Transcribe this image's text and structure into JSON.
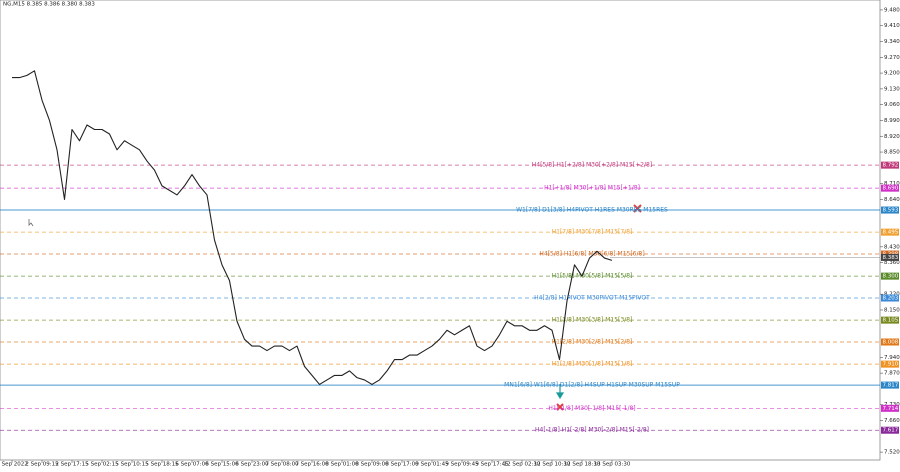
{
  "chart_data": {
    "type": "line",
    "title": "NG,M15  8.385 8.386 8.380 8.383",
    "color": "#222222",
    "categories": [
      "2 Sep 2022",
      null,
      null,
      null,
      "2 Sep 09:15",
      null,
      null,
      null,
      "2 Sep 17:15",
      null,
      null,
      null,
      "5 Sep 02:15",
      null,
      null,
      null,
      "5 Sep 10:15",
      null,
      null,
      null,
      "5 Sep 18:15",
      null,
      null,
      null,
      "6 Sep 07:00",
      null,
      null,
      null,
      "6 Sep 15:00",
      null,
      null,
      null,
      "6 Sep 23:00",
      null,
      null,
      null,
      "7 Sep 08:00",
      null,
      null,
      null,
      "7 Sep 16:00",
      null,
      null,
      null,
      "8 Sep 01:00",
      null,
      null,
      null,
      "8 Sep 09:00",
      null,
      null,
      null,
      "8 Sep 17:00",
      null,
      null,
      null,
      "9 Sep 01:45",
      null,
      null,
      null,
      "9 Sep 09:45",
      null,
      null,
      null,
      "9 Sep 17:45",
      null,
      null,
      null,
      "12 Sep 02:30",
      null,
      null,
      null,
      "12 Sep 10:30",
      null,
      null,
      null,
      "12 Sep 18:30",
      null,
      null,
      null,
      "13 Sep 03:30"
    ],
    "values": [
      9.18,
      9.18,
      9.19,
      9.21,
      9.08,
      8.99,
      8.86,
      8.64,
      8.95,
      8.9,
      8.97,
      8.95,
      8.95,
      8.93,
      8.86,
      8.9,
      8.88,
      8.86,
      8.81,
      8.77,
      8.7,
      8.68,
      8.66,
      8.7,
      8.75,
      8.7,
      8.66,
      8.46,
      8.35,
      8.28,
      8.1,
      8.02,
      7.99,
      7.99,
      7.97,
      7.99,
      7.99,
      7.97,
      7.99,
      7.9,
      7.86,
      7.82,
      7.84,
      7.86,
      7.86,
      7.88,
      7.85,
      7.84,
      7.82,
      7.84,
      7.88,
      7.93,
      7.93,
      7.95,
      7.95,
      7.97,
      7.99,
      8.02,
      8.06,
      8.04,
      8.06,
      8.08,
      7.99,
      7.97,
      7.99,
      8.04,
      8.1,
      8.08,
      8.08,
      8.06,
      8.06,
      8.08,
      8.06,
      7.93,
      8.19,
      8.35,
      8.3,
      8.38,
      8.41,
      8.38,
      8.37
    ],
    "ylim": [
      7.485,
      9.524
    ],
    "yticks": [
      {
        "value": 9.48,
        "label": "9.480"
      },
      {
        "value": 9.41,
        "label": "9.410"
      },
      {
        "value": 9.34,
        "label": "9.340"
      },
      {
        "value": 9.27,
        "label": "9.270"
      },
      {
        "value": 9.2,
        "label": "9.200"
      },
      {
        "value": 9.13,
        "label": "9.130"
      },
      {
        "value": 9.06,
        "label": "9.060"
      },
      {
        "value": 8.99,
        "label": "8.990"
      },
      {
        "value": 8.92,
        "label": "8.920"
      },
      {
        "value": 8.85,
        "label": "8.850"
      },
      {
        "value": 8.71,
        "label": "8.710"
      },
      {
        "value": 8.64,
        "label": "8.640"
      },
      {
        "value": 8.43,
        "label": "8.430"
      },
      {
        "value": 8.36,
        "label": "8.360"
      },
      {
        "value": 8.22,
        "label": "8.220"
      },
      {
        "value": 8.15,
        "label": "8.150"
      },
      {
        "value": 7.94,
        "label": "7.940"
      },
      {
        "value": 7.87,
        "label": "7.870"
      },
      {
        "value": 7.73,
        "label": "7.730"
      },
      {
        "value": 7.66,
        "label": "7.660"
      },
      {
        "value": 7.52,
        "label": "7.520"
      }
    ],
    "levels": [
      {
        "label": "H4[5/8] H1[+2/8] M30[+2/8] M15[+2/8]",
        "value": 8.792,
        "value_label": "8.792",
        "color": "#c0397a",
        "dashed": true
      },
      {
        "label": "H1[+1/8] M30[+1/8] M15[+1/8]",
        "value": 8.69,
        "value_label": "8.690",
        "color": "#d030c8",
        "dashed": true
      },
      {
        "label": "W1[7/8] D1[3/8] H4PIVOT H1RES M30RES M15RES",
        "value": 8.593,
        "value_label": "8.593",
        "color": "#2a86c8",
        "dashed": false
      },
      {
        "label": "H1[7/8] M30[7/8] M15[7/8]",
        "value": 8.495,
        "value_label": "8.495",
        "color": "#f0a030",
        "dashed": true
      },
      {
        "label": "H4[5/8] H1[6/8] M30[6/8] M15[6/8]",
        "value": 8.398,
        "value_label": "8.398",
        "color": "#d06820",
        "dashed": true
      },
      {
        "label": "H1[5/8] M30[5/8] M15[5/8]",
        "value": 8.3,
        "value_label": "8.300",
        "color": "#5a8a2a",
        "dashed": true
      },
      {
        "label": "H4[2/8] H1PIVOT M30PIVOT M15PIVOT",
        "value": 8.203,
        "value_label": "8.203",
        "color": "#3a8ad8",
        "dashed": true
      },
      {
        "label": "H1[3/8] M30[3/8] M15[3/8]",
        "value": 8.105,
        "value_label": "8.105",
        "color": "#7a8a20",
        "dashed": true
      },
      {
        "label": "H1[2/8] M30[2/8] M15[2/8]",
        "value": 8.008,
        "value_label": "8.008",
        "color": "#e07818",
        "dashed": true
      },
      {
        "label": "H1[1/8] M30[1/8] M15[1/8]",
        "value": 7.91,
        "value_label": "7.910",
        "color": "#f09020",
        "dashed": true
      },
      {
        "label": "MN1[6/8] W1[6/8] D1[2/8] H4SUP H1SUP M30SUP M15SUP",
        "value": 7.817,
        "value_label": "7.817",
        "color": "#2a86c8",
        "dashed": false
      },
      {
        "label": "H1[-1/8] M30[-1/8] M15[-1/8]",
        "value": 7.714,
        "value_label": "7.714",
        "color": "#d030c8",
        "dashed": true
      },
      {
        "label": "H4[-1/8] H1[-2/8] M30[-2/8] M15[-2/8]",
        "value": 7.617,
        "value_label": "7.617",
        "color": "#8a2a9a",
        "dashed": true
      }
    ],
    "current_price": 8.383
  }
}
